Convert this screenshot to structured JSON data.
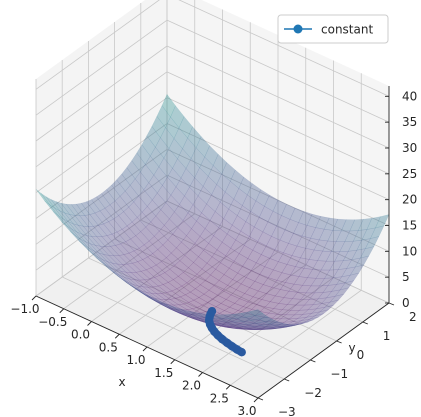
{
  "chart_data": {
    "type": "surface3d",
    "title": "",
    "xlabel": "x",
    "ylabel": "y",
    "zlabel": "",
    "xlim": [
      -1.0,
      3.0
    ],
    "ylim": [
      -3,
      2
    ],
    "zlim": [
      0,
      42
    ],
    "x_ticks": [
      "−1.0",
      "−0.5",
      "0.0",
      "0.5",
      "1.0",
      "1.5",
      "2.0",
      "2.5",
      "3.0"
    ],
    "y_ticks": [
      "−3",
      "−2",
      "−1",
      "0",
      "1",
      "2"
    ],
    "z_ticks": [
      "0",
      "5",
      "10",
      "15",
      "20",
      "25",
      "30",
      "35",
      "40"
    ],
    "surface": {
      "function": "paraboloid",
      "colormap": "viridis",
      "alpha": 0.35
    },
    "series": [
      {
        "name": "constant",
        "color": "#1f77b4",
        "marker": "circle",
        "x": [
          1.25,
          1.27,
          1.3,
          1.34,
          1.4,
          1.47,
          1.55,
          1.64,
          1.74,
          1.85,
          1.95,
          2.05,
          2.14
        ],
        "y": [
          -1.05,
          -1.15,
          -1.25,
          -1.35,
          -1.44,
          -1.52,
          -1.59,
          -1.65,
          -1.7,
          -1.74,
          -1.77,
          -1.79,
          -1.8
        ],
        "z": [
          1.0,
          0.9,
          0.8,
          0.7,
          0.6,
          0.55,
          0.5,
          0.45,
          0.4,
          0.35,
          0.3,
          0.25,
          0.2
        ]
      }
    ],
    "grid": true,
    "legend_position": "top-right"
  }
}
